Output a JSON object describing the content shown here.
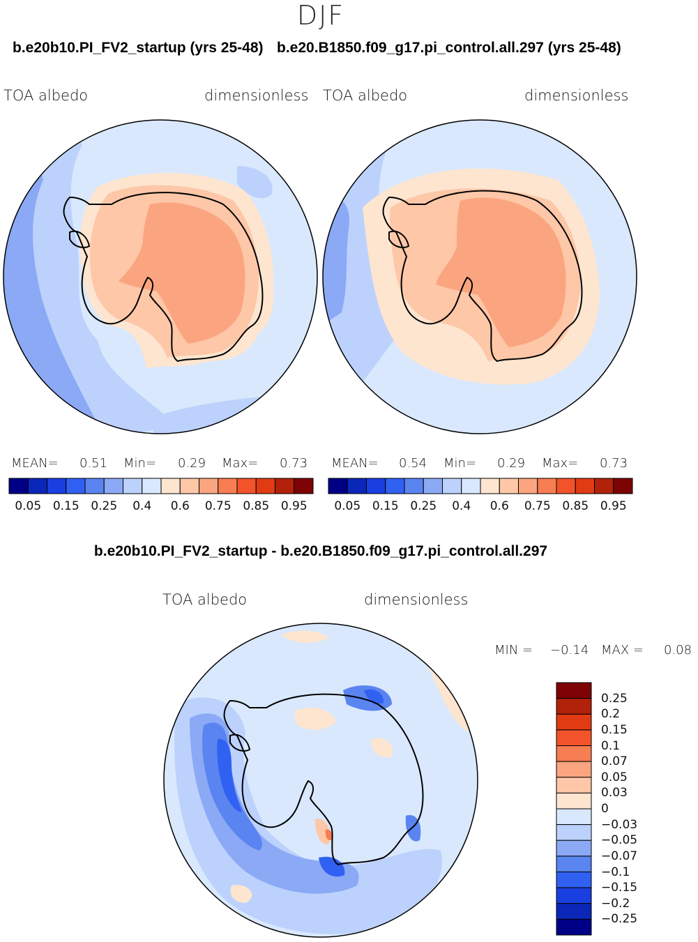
{
  "season": "DJF",
  "panels": [
    {
      "title": "b.e20b10.PI_FV2_startup (yrs 25-48)",
      "variable": "TOA  albedo",
      "units": "dimensionless",
      "stats": {
        "mean_label": "MEAN=",
        "mean": "0.51",
        "min_label": "Min=",
        "min": "0.29",
        "max_label": "Max=",
        "max": "0.73"
      }
    },
    {
      "title": "b.e20.B1850.f09_g17.pi_control.all.297 (yrs 25-48)",
      "variable": "TOA  albedo",
      "units": "dimensionless",
      "stats": {
        "mean_label": "MEAN=",
        "mean": "0.54",
        "min_label": "Min=",
        "min": "0.29",
        "max_label": "Max=",
        "max": "0.73"
      }
    }
  ],
  "diff": {
    "title": "b.e20b10.PI_FV2_startup - b.e20.B1850.f09_g17.pi_control.all.297",
    "variable": "TOA  albedo",
    "units": "dimensionless",
    "min_label": "MIN =",
    "min": "−0.14",
    "max_label": "MAX =",
    "max": "0.08"
  },
  "albedo_colorbar": {
    "colors": [
      "#000087",
      "#0b27b9",
      "#1a3fe0",
      "#3161f2",
      "#5a84f0",
      "#8ba9f5",
      "#bcd2fc",
      "#d9e8fd",
      "#fde5d0",
      "#fdc7a8",
      "#fba580",
      "#f77d52",
      "#f2532a",
      "#e03b13",
      "#b22109",
      "#7d0305"
    ],
    "labels": [
      "0.05",
      "0.15",
      "0.25",
      "0.4",
      "0.6",
      "0.75",
      "0.85",
      "0.95"
    ]
  },
  "diff_colorbar": {
    "colors_top_to_bottom": [
      "#7d0305",
      "#b22109",
      "#e03b13",
      "#f2532a",
      "#f77d52",
      "#fba580",
      "#fdc7a8",
      "#fde5d0",
      "#d9e8fd",
      "#bcd2fc",
      "#8ba9f5",
      "#5a84f0",
      "#3161f2",
      "#1a3fe0",
      "#0b27b9",
      "#000087"
    ],
    "labels": [
      "0.25",
      "0.2",
      "0.15",
      "0.1",
      "0.07",
      "0.05",
      "0.03",
      "0",
      "−0.03",
      "−0.05",
      "−0.07",
      "−0.1",
      "−0.15",
      "−0.2",
      "−0.25"
    ]
  }
}
